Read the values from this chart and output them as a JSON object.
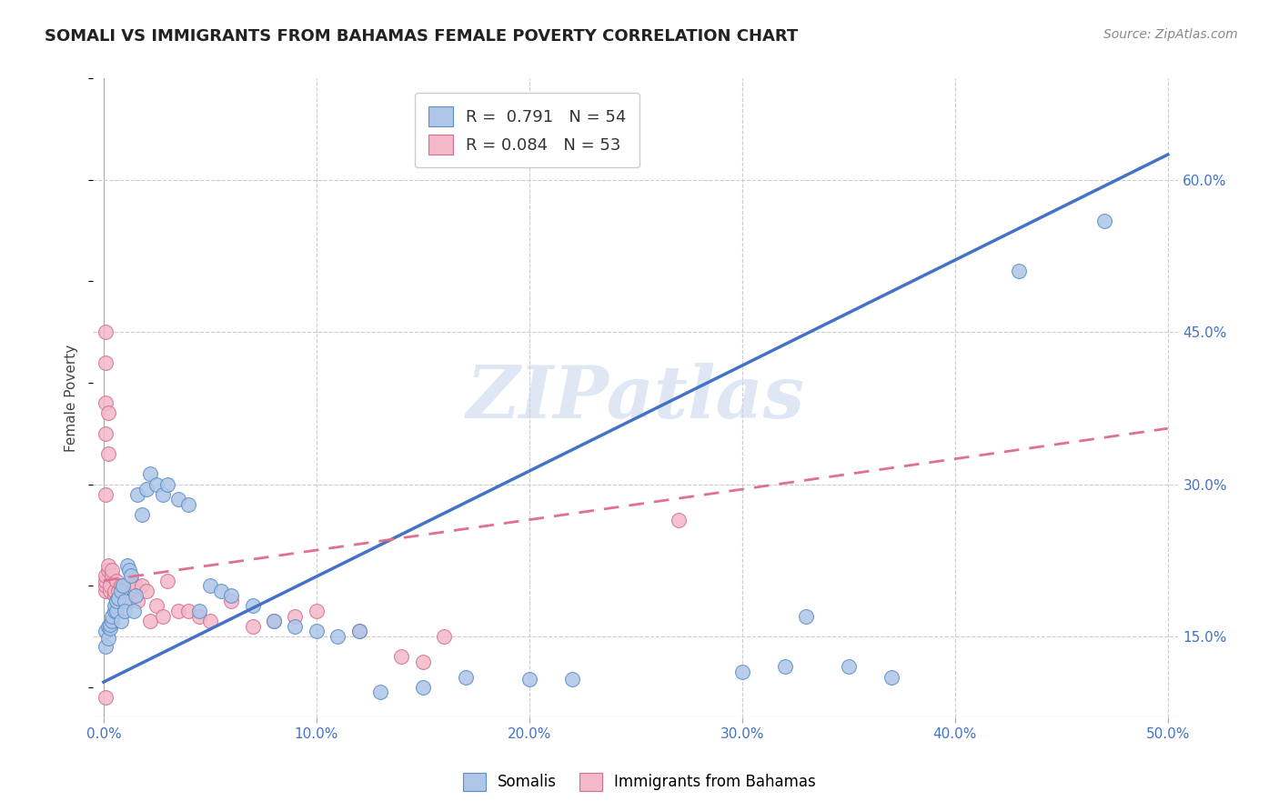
{
  "title": "SOMALI VS IMMIGRANTS FROM BAHAMAS FEMALE POVERTY CORRELATION CHART",
  "source": "Source: ZipAtlas.com",
  "ylabel": "Female Poverty",
  "xlim": [
    -0.005,
    0.505
  ],
  "ylim": [
    0.07,
    0.7
  ],
  "xticks": [
    0.0,
    0.1,
    0.2,
    0.3,
    0.4,
    0.5
  ],
  "ytick_vals": [
    0.15,
    0.3,
    0.45,
    0.6
  ],
  "ytick_labels": [
    "15.0%",
    "30.0%",
    "45.0%",
    "60.0%"
  ],
  "xtick_labels": [
    "0.0%",
    "10.0%",
    "20.0%",
    "30.0%",
    "40.0%",
    "50.0%"
  ],
  "somali_color": "#aec6e8",
  "somali_edge_color": "#5b8ec4",
  "bahamas_color": "#f4b8c8",
  "bahamas_edge_color": "#d07090",
  "somali_line_color": "#4472c4",
  "bahamas_line_color": "#e07090",
  "watermark": "ZIPatlas",
  "watermark_color": "#c8d8ec",
  "somali_line_x0": 0.0,
  "somali_line_y0": 0.105,
  "somali_line_x1": 0.5,
  "somali_line_y1": 0.625,
  "bahamas_line_x0": 0.0,
  "bahamas_line_y0": 0.205,
  "bahamas_line_x1": 0.5,
  "bahamas_line_y1": 0.355,
  "somali_x": [
    0.001,
    0.001,
    0.002,
    0.002,
    0.003,
    0.003,
    0.004,
    0.004,
    0.005,
    0.005,
    0.006,
    0.006,
    0.007,
    0.008,
    0.008,
    0.009,
    0.01,
    0.01,
    0.011,
    0.012,
    0.013,
    0.014,
    0.015,
    0.016,
    0.018,
    0.02,
    0.022,
    0.025,
    0.028,
    0.03,
    0.035,
    0.04,
    0.045,
    0.05,
    0.055,
    0.06,
    0.07,
    0.08,
    0.09,
    0.1,
    0.11,
    0.12,
    0.13,
    0.15,
    0.17,
    0.2,
    0.22,
    0.3,
    0.32,
    0.33,
    0.35,
    0.37,
    0.43,
    0.47
  ],
  "somali_y": [
    0.14,
    0.155,
    0.148,
    0.16,
    0.158,
    0.162,
    0.165,
    0.17,
    0.175,
    0.18,
    0.175,
    0.185,
    0.188,
    0.165,
    0.195,
    0.2,
    0.185,
    0.175,
    0.22,
    0.215,
    0.21,
    0.175,
    0.19,
    0.29,
    0.27,
    0.295,
    0.31,
    0.3,
    0.29,
    0.3,
    0.285,
    0.28,
    0.175,
    0.2,
    0.195,
    0.19,
    0.18,
    0.165,
    0.16,
    0.155,
    0.15,
    0.155,
    0.095,
    0.1,
    0.11,
    0.108,
    0.108,
    0.115,
    0.12,
    0.17,
    0.12,
    0.11,
    0.51,
    0.56
  ],
  "bahamas_x": [
    0.001,
    0.001,
    0.001,
    0.001,
    0.002,
    0.002,
    0.003,
    0.003,
    0.004,
    0.004,
    0.005,
    0.005,
    0.006,
    0.006,
    0.007,
    0.007,
    0.008,
    0.009,
    0.01,
    0.011,
    0.012,
    0.013,
    0.014,
    0.015,
    0.016,
    0.018,
    0.02,
    0.022,
    0.025,
    0.028,
    0.03,
    0.035,
    0.04,
    0.045,
    0.05,
    0.06,
    0.07,
    0.08,
    0.09,
    0.1,
    0.12,
    0.14,
    0.15,
    0.16,
    0.001,
    0.001,
    0.002,
    0.001,
    0.001,
    0.001,
    0.27,
    0.001,
    0.002
  ],
  "bahamas_y": [
    0.195,
    0.2,
    0.205,
    0.21,
    0.215,
    0.22,
    0.195,
    0.2,
    0.21,
    0.215,
    0.19,
    0.195,
    0.185,
    0.205,
    0.195,
    0.185,
    0.2,
    0.19,
    0.195,
    0.2,
    0.185,
    0.205,
    0.195,
    0.2,
    0.185,
    0.2,
    0.195,
    0.165,
    0.18,
    0.17,
    0.205,
    0.175,
    0.175,
    0.17,
    0.165,
    0.185,
    0.16,
    0.165,
    0.17,
    0.175,
    0.155,
    0.13,
    0.125,
    0.15,
    0.38,
    0.35,
    0.33,
    0.42,
    0.45,
    0.29,
    0.265,
    0.09,
    0.37
  ]
}
